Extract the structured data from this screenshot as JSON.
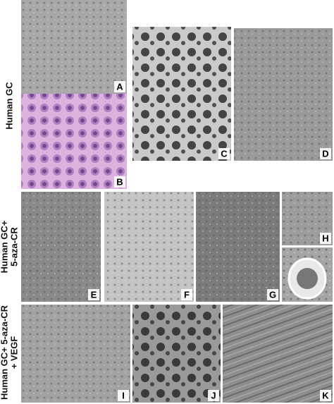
{
  "rows": [
    {
      "label_lines": [
        "Human GC"
      ],
      "panels": [
        "A",
        "B",
        "C",
        "D"
      ]
    },
    {
      "label_lines": [
        "Human GC+",
        "5-aza-CR"
      ],
      "panels": [
        "E",
        "F",
        "G",
        "H"
      ]
    },
    {
      "label_lines": [
        "Human GC+ 5-aza-CR",
        "+ VEGF"
      ],
      "panels": [
        "I",
        "J",
        "K"
      ]
    }
  ]
}
